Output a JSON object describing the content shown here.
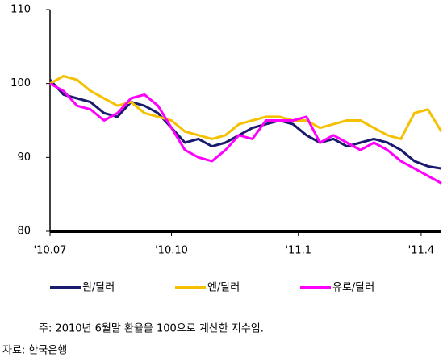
{
  "chart_data": {
    "type": "line",
    "x": [
      0,
      10,
      20,
      30,
      40,
      50,
      60,
      70,
      80,
      90,
      100,
      110,
      120,
      130,
      140,
      150,
      160,
      170,
      180,
      190,
      200,
      210,
      220,
      230,
      240,
      250,
      260,
      270,
      280,
      290
    ],
    "xlim": [
      0,
      290
    ],
    "xticks": [
      {
        "value": 0,
        "label": "'10.07"
      },
      {
        "value": 90,
        "label": "'10.10"
      },
      {
        "value": 184,
        "label": "'11.1"
      },
      {
        "value": 275,
        "label": "'11.4"
      }
    ],
    "ylim": [
      80,
      110
    ],
    "yticks": [
      80,
      90,
      100,
      110
    ],
    "series": [
      {
        "name": "원/달러",
        "color": "#1a1a6e",
        "values": [
          100.5,
          98.5,
          98,
          97.5,
          96,
          95.5,
          97.5,
          97,
          96,
          94,
          92,
          92.5,
          91.5,
          92,
          93,
          94,
          94.5,
          95,
          94.5,
          93,
          92,
          92.5,
          91.5,
          92,
          92.5,
          92,
          91,
          89.5,
          88.8,
          88.5
        ]
      },
      {
        "name": "엔/달러",
        "color": "#f5c000",
        "values": [
          100,
          101,
          100.5,
          99,
          98,
          97,
          97.5,
          96,
          95.5,
          95,
          93.5,
          93,
          92.5,
          93,
          94.5,
          95,
          95.5,
          95.5,
          95,
          95,
          94,
          94.5,
          95,
          95,
          94,
          93,
          92.5,
          96,
          96.5,
          93.5
        ]
      },
      {
        "name": "유로/달러",
        "color": "#ff00ff",
        "values": [
          100,
          99,
          97,
          96.5,
          95,
          96,
          98,
          98.5,
          97,
          94,
          91,
          90,
          89.5,
          91,
          93,
          92.5,
          95,
          95,
          95,
          95.5,
          92,
          93,
          92,
          91,
          92,
          91,
          89.5,
          88.5,
          87.5,
          86.5
        ]
      }
    ],
    "notes": [
      "주: 2010년 6월말 환율을 100으로 계산한 지수임.",
      "자료: 한국은행"
    ]
  }
}
